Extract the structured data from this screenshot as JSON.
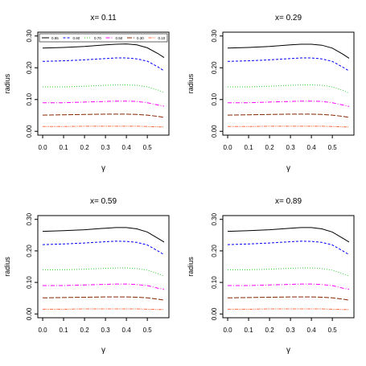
{
  "colors": {
    "0.95": "#000000",
    "0.90": "#0000ff",
    "0.70": "#33cc33",
    "0.50": "#ff00ff",
    "0.30": "#8b2500",
    "0.10": "#ff6a3d"
  },
  "chart_data": [
    {
      "type": "line",
      "title": "x= 0.11",
      "xlabel": "γ",
      "ylabel": "radius",
      "xlim": [
        0,
        0.58
      ],
      "ylim": [
        0,
        0.3
      ],
      "xticks": [
        "0.0",
        "0.1",
        "0.2",
        "0.3",
        "0.4",
        "0.5"
      ],
      "yticks": [
        "0.00",
        "0.10",
        "0.20",
        "0.30"
      ],
      "legend": {
        "position": "top",
        "entries": [
          "0.95",
          "0.90",
          "0.70",
          "0.50",
          "0.30",
          "0.10"
        ]
      },
      "x": [
        0,
        0.1,
        0.2,
        0.3,
        0.35,
        0.4,
        0.45,
        0.5,
        0.55,
        0.58
      ],
      "series": [
        {
          "name": "0.95",
          "values": [
            0.262,
            0.264,
            0.267,
            0.272,
            0.274,
            0.275,
            0.272,
            0.263,
            0.245,
            0.232
          ]
        },
        {
          "name": "0.90",
          "values": [
            0.22,
            0.222,
            0.225,
            0.229,
            0.231,
            0.231,
            0.228,
            0.221,
            0.203,
            0.19
          ]
        },
        {
          "name": "0.70",
          "values": [
            0.14,
            0.14,
            0.142,
            0.145,
            0.146,
            0.146,
            0.145,
            0.14,
            0.13,
            0.122
          ]
        },
        {
          "name": "0.50",
          "values": [
            0.09,
            0.09,
            0.092,
            0.094,
            0.095,
            0.095,
            0.094,
            0.09,
            0.083,
            0.079
          ]
        },
        {
          "name": "0.30",
          "values": [
            0.051,
            0.052,
            0.053,
            0.054,
            0.054,
            0.054,
            0.053,
            0.051,
            0.047,
            0.044
          ]
        },
        {
          "name": "0.10",
          "values": [
            0.015,
            0.015,
            0.016,
            0.016,
            0.016,
            0.016,
            0.016,
            0.015,
            0.014,
            0.014
          ]
        }
      ]
    },
    {
      "type": "line",
      "title": "x= 0.29",
      "xlabel": "γ",
      "ylabel": "radius",
      "xlim": [
        0,
        0.58
      ],
      "ylim": [
        0,
        0.3
      ],
      "xticks": [
        "0.0",
        "0.1",
        "0.2",
        "0.3",
        "0.4",
        "0.5"
      ],
      "yticks": [
        "0.00",
        "0.10",
        "0.20",
        "0.30"
      ],
      "x": [
        0,
        0.1,
        0.2,
        0.3,
        0.35,
        0.4,
        0.45,
        0.5,
        0.55,
        0.58
      ],
      "series": [
        {
          "name": "0.95",
          "values": [
            0.262,
            0.264,
            0.267,
            0.272,
            0.274,
            0.274,
            0.271,
            0.262,
            0.243,
            0.23
          ]
        },
        {
          "name": "0.90",
          "values": [
            0.22,
            0.222,
            0.225,
            0.229,
            0.231,
            0.231,
            0.228,
            0.22,
            0.202,
            0.19
          ]
        },
        {
          "name": "0.70",
          "values": [
            0.14,
            0.14,
            0.142,
            0.145,
            0.146,
            0.146,
            0.145,
            0.14,
            0.129,
            0.12
          ]
        },
        {
          "name": "0.50",
          "values": [
            0.09,
            0.09,
            0.092,
            0.094,
            0.095,
            0.095,
            0.094,
            0.09,
            0.083,
            0.078
          ]
        },
        {
          "name": "0.30",
          "values": [
            0.051,
            0.052,
            0.053,
            0.054,
            0.054,
            0.054,
            0.053,
            0.051,
            0.047,
            0.044
          ]
        },
        {
          "name": "0.10",
          "values": [
            0.015,
            0.015,
            0.016,
            0.016,
            0.016,
            0.016,
            0.016,
            0.015,
            0.014,
            0.014
          ]
        }
      ]
    },
    {
      "type": "line",
      "title": "x= 0.59",
      "xlabel": "γ",
      "ylabel": "radius",
      "xlim": [
        0,
        0.58
      ],
      "ylim": [
        0,
        0.3
      ],
      "xticks": [
        "0.0",
        "0.1",
        "0.2",
        "0.3",
        "0.4",
        "0.5"
      ],
      "yticks": [
        "0.00",
        "0.10",
        "0.20",
        "0.30"
      ],
      "x": [
        0,
        0.1,
        0.2,
        0.3,
        0.35,
        0.4,
        0.45,
        0.5,
        0.55,
        0.58
      ],
      "series": [
        {
          "name": "0.95",
          "values": [
            0.262,
            0.264,
            0.267,
            0.272,
            0.274,
            0.274,
            0.27,
            0.26,
            0.24,
            0.228
          ]
        },
        {
          "name": "0.90",
          "values": [
            0.22,
            0.222,
            0.225,
            0.229,
            0.231,
            0.23,
            0.227,
            0.219,
            0.2,
            0.188
          ]
        },
        {
          "name": "0.70",
          "values": [
            0.14,
            0.14,
            0.142,
            0.145,
            0.146,
            0.146,
            0.144,
            0.139,
            0.128,
            0.12
          ]
        },
        {
          "name": "0.50",
          "values": [
            0.09,
            0.09,
            0.092,
            0.094,
            0.095,
            0.095,
            0.093,
            0.09,
            0.082,
            0.078
          ]
        },
        {
          "name": "0.30",
          "values": [
            0.051,
            0.052,
            0.053,
            0.054,
            0.054,
            0.054,
            0.053,
            0.051,
            0.047,
            0.044
          ]
        },
        {
          "name": "0.10",
          "values": [
            0.015,
            0.015,
            0.016,
            0.016,
            0.016,
            0.016,
            0.016,
            0.015,
            0.014,
            0.014
          ]
        }
      ]
    },
    {
      "type": "line",
      "title": "x= 0.89",
      "xlabel": "γ",
      "ylabel": "radius",
      "xlim": [
        0,
        0.58
      ],
      "ylim": [
        0,
        0.3
      ],
      "xticks": [
        "0.0",
        "0.1",
        "0.2",
        "0.3",
        "0.4",
        "0.5"
      ],
      "yticks": [
        "0.00",
        "0.10",
        "0.20",
        "0.30"
      ],
      "x": [
        0,
        0.1,
        0.2,
        0.3,
        0.35,
        0.4,
        0.45,
        0.5,
        0.55,
        0.58
      ],
      "series": [
        {
          "name": "0.95",
          "values": [
            0.262,
            0.264,
            0.267,
            0.272,
            0.274,
            0.274,
            0.27,
            0.26,
            0.24,
            0.228
          ]
        },
        {
          "name": "0.90",
          "values": [
            0.22,
            0.222,
            0.225,
            0.229,
            0.231,
            0.23,
            0.227,
            0.219,
            0.2,
            0.188
          ]
        },
        {
          "name": "0.70",
          "values": [
            0.14,
            0.14,
            0.142,
            0.145,
            0.146,
            0.146,
            0.144,
            0.139,
            0.128,
            0.12
          ]
        },
        {
          "name": "0.50",
          "values": [
            0.09,
            0.09,
            0.092,
            0.094,
            0.095,
            0.095,
            0.093,
            0.09,
            0.082,
            0.078
          ]
        },
        {
          "name": "0.30",
          "values": [
            0.051,
            0.052,
            0.053,
            0.054,
            0.054,
            0.054,
            0.053,
            0.051,
            0.047,
            0.044
          ]
        },
        {
          "name": "0.10",
          "values": [
            0.015,
            0.015,
            0.016,
            0.016,
            0.016,
            0.016,
            0.016,
            0.015,
            0.014,
            0.014
          ]
        }
      ]
    }
  ]
}
